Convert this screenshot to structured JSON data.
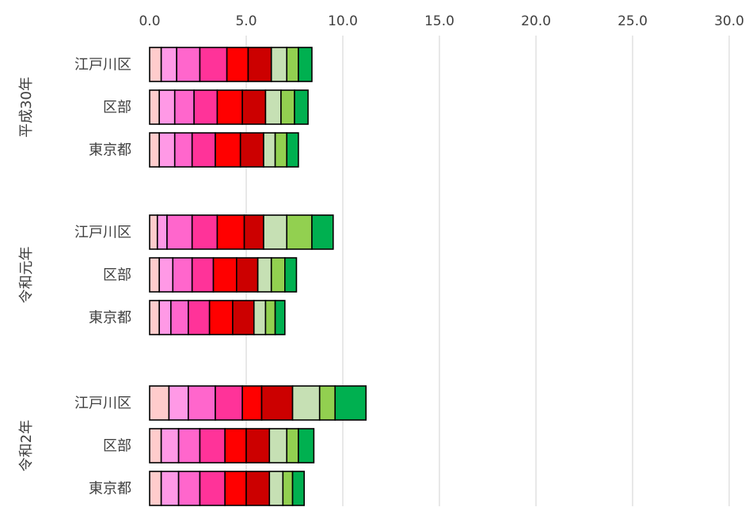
{
  "chart_data": {
    "type": "bar",
    "orientation": "horizontal",
    "stacked": true,
    "title": "",
    "xlabel": "",
    "ylabel": "",
    "xlim": [
      0,
      30
    ],
    "x_ticks": [
      "0.0",
      "5.0",
      "10.0",
      "15.0",
      "20.0",
      "25.0",
      "30.0"
    ],
    "grid": true,
    "legend": "none",
    "groups": [
      {
        "label": "平成30年",
        "bars": [
          {
            "category": "江戸川区",
            "segments": [
              0.6,
              0.8,
              1.2,
              1.4,
              1.1,
              1.2,
              0.8,
              0.6,
              0.7
            ]
          },
          {
            "category": "区部",
            "segments": [
              0.5,
              0.8,
              1.0,
              1.2,
              1.3,
              1.2,
              0.8,
              0.7,
              0.7
            ]
          },
          {
            "category": "東京都",
            "segments": [
              0.5,
              0.8,
              0.9,
              1.2,
              1.3,
              1.2,
              0.6,
              0.6,
              0.6
            ]
          }
        ]
      },
      {
        "label": "令和元年",
        "bars": [
          {
            "category": "江戸川区",
            "segments": [
              0.4,
              0.5,
              1.3,
              1.3,
              1.4,
              1.0,
              1.2,
              1.3,
              1.1
            ]
          },
          {
            "category": "区部",
            "segments": [
              0.5,
              0.7,
              1.0,
              1.1,
              1.2,
              1.1,
              0.7,
              0.7,
              0.6
            ]
          },
          {
            "category": "東京都",
            "segments": [
              0.5,
              0.6,
              0.9,
              1.1,
              1.2,
              1.1,
              0.6,
              0.5,
              0.5
            ]
          }
        ]
      },
      {
        "label": "令和2年",
        "bars": [
          {
            "category": "江戸川区",
            "segments": [
              1.0,
              1.0,
              1.4,
              1.4,
              1.0,
              1.6,
              1.4,
              0.8,
              1.6
            ]
          },
          {
            "category": "区部",
            "segments": [
              0.6,
              0.9,
              1.1,
              1.3,
              1.1,
              1.2,
              0.9,
              0.6,
              0.8
            ]
          },
          {
            "category": "東京都",
            "segments": [
              0.6,
              0.9,
              1.1,
              1.3,
              1.1,
              1.2,
              0.7,
              0.5,
              0.6
            ]
          }
        ]
      }
    ],
    "segment_colors": [
      "#ffcccc",
      "#ff99e6",
      "#ff66cc",
      "#ff3399",
      "#ff0000",
      "#cc0000",
      "#c6e0b4",
      "#92d050",
      "#00b050"
    ]
  }
}
